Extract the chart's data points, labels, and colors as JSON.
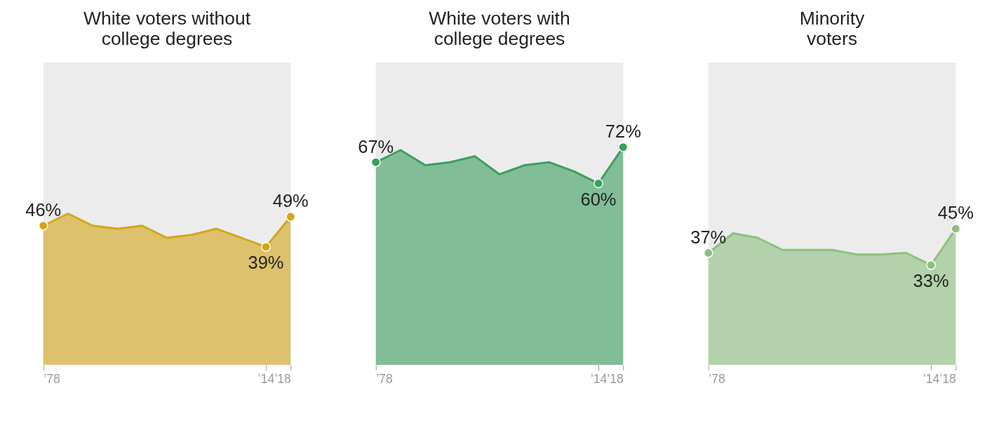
{
  "chart_data": [
    {
      "type": "area",
      "title": "White voters without\ncollege degrees",
      "x": [
        1978,
        1982,
        1986,
        1990,
        1994,
        1998,
        2002,
        2006,
        2010,
        2014,
        2018
      ],
      "xlim": [
        1978,
        2018
      ],
      "xticks": [
        {
          "value": 1978,
          "label": "’78"
        },
        {
          "value": 2014,
          "label": "’14"
        },
        {
          "value": 2018,
          "label": "’18"
        }
      ],
      "ylim": [
        0,
        100
      ],
      "tick_labels": "x",
      "grid": false,
      "series": [
        {
          "color": "#d4a517",
          "values": [
            46,
            50,
            46,
            45,
            46,
            42,
            43,
            45,
            42,
            39,
            49
          ],
          "value_labels": [
            "46%",
            null,
            null,
            null,
            null,
            null,
            null,
            null,
            null,
            "39%",
            "49%"
          ]
        }
      ]
    },
    {
      "type": "area",
      "title": "White voters with\ncollege degrees",
      "x": [
        1978,
        1982,
        1986,
        1990,
        1994,
        1998,
        2002,
        2006,
        2010,
        2014,
        2018
      ],
      "xlim": [
        1978,
        2018
      ],
      "xticks": [
        {
          "value": 1978,
          "label": "’78"
        },
        {
          "value": 2014,
          "label": "’14"
        },
        {
          "value": 2018,
          "label": "’18"
        }
      ],
      "ylim": [
        0,
        100
      ],
      "tick_labels": "x",
      "grid": false,
      "series": [
        {
          "color": "#3a9e5f",
          "values": [
            67,
            71,
            66,
            67,
            69,
            63,
            66,
            67,
            64,
            60,
            72
          ],
          "value_labels": [
            "67%",
            null,
            null,
            null,
            null,
            null,
            null,
            null,
            null,
            "60%",
            "72%"
          ]
        }
      ]
    },
    {
      "type": "area",
      "title": "Minority\nvoters",
      "x": [
        1978,
        1982,
        1986,
        1990,
        1994,
        1998,
        2002,
        2006,
        2010,
        2014,
        2018
      ],
      "xlim": [
        1978,
        2018
      ],
      "xticks": [
        {
          "value": 1978,
          "label": "’78"
        },
        {
          "value": 2014,
          "label": "’14"
        },
        {
          "value": 2018,
          "label": "’18"
        }
      ],
      "ylim": [
        0,
        100
      ],
      "tick_labels": "x",
      "grid": false,
      "series": [
        {
          "color": "#8dc07e",
          "values": [
            37,
            43.5,
            42,
            38,
            38,
            38,
            36.5,
            36.5,
            37,
            33,
            45
          ],
          "value_labels": [
            "37%",
            null,
            null,
            null,
            null,
            null,
            null,
            null,
            null,
            "33%",
            "45%"
          ]
        }
      ]
    }
  ]
}
